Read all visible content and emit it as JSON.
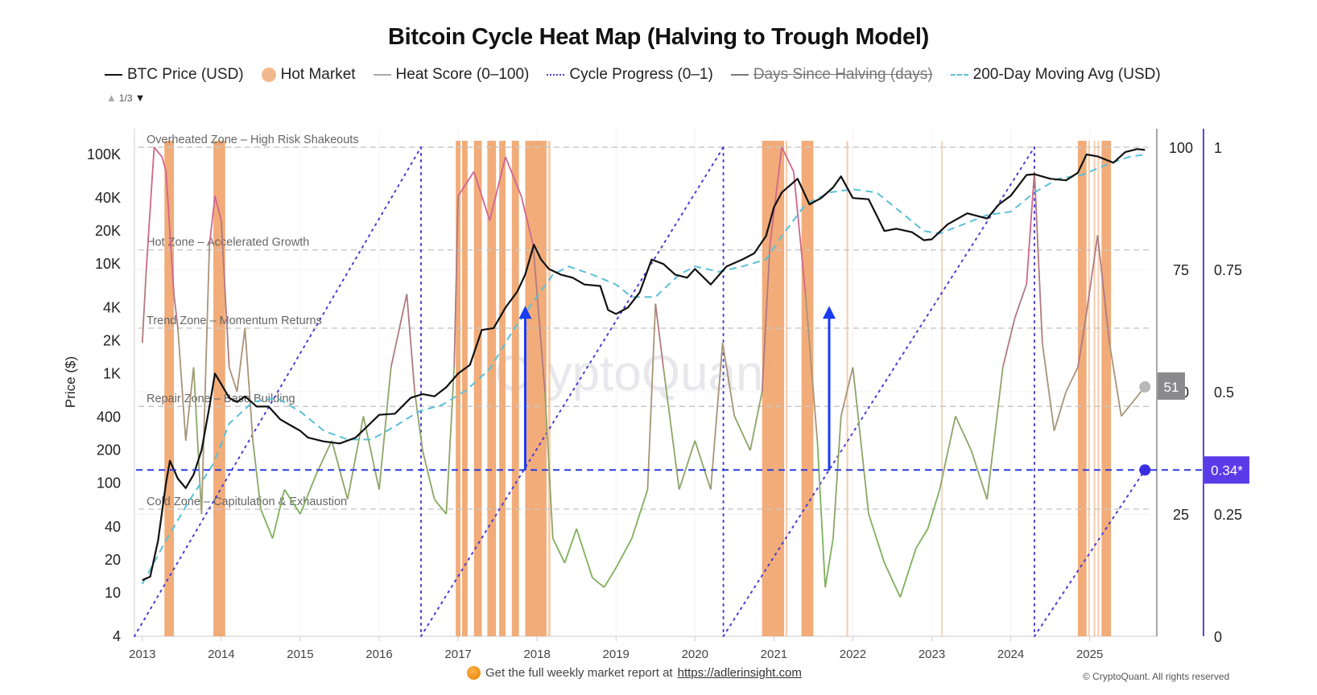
{
  "title": "Bitcoin Cycle Heat Map (Halving to Trough Model)",
  "legend": [
    {
      "label": "BTC Price (USD)",
      "style": "solid",
      "color": "#111111",
      "visible": true
    },
    {
      "label": "Hot Market",
      "style": "dot",
      "color": "#f2b98f",
      "visible": true
    },
    {
      "label": "Heat Score (0–100)",
      "style": "solid",
      "color": "#aaaaaa",
      "visible": true
    },
    {
      "label": "Cycle Progress (0–1)",
      "style": "dotted",
      "color": "#4b3bd6",
      "visible": true
    },
    {
      "label": "Days Since Halving (days)",
      "style": "solid",
      "color": "#777777",
      "visible": false
    },
    {
      "label": "200-Day Moving Avg (USD)",
      "style": "dashed",
      "color": "#5bc0d8",
      "visible": true
    }
  ],
  "legend_pager": {
    "text": "1/3"
  },
  "footer": {
    "text": "Get the full weekly market report at",
    "link": "https://adlerinsight.com",
    "copyright": "© CryptoQuant. All rights reserved"
  },
  "watermark": "CryptoQuant",
  "chart_data": {
    "type": "line",
    "title": "Bitcoin Cycle Heat Map (Halving to Trough Model)",
    "xlabel": "",
    "ylabel": "Price ($)",
    "x_ticks": [
      "2013",
      "2014",
      "2015",
      "2016",
      "2017",
      "2018",
      "2019",
      "2020",
      "2021",
      "2022",
      "2023",
      "2024",
      "2025"
    ],
    "xlim": [
      2012.9,
      2025.85
    ],
    "price_axis": {
      "scale": "log",
      "ylim": [
        4,
        130000
      ],
      "ticks": [
        {
          "value": 4,
          "label": "4"
        },
        {
          "value": 10,
          "label": "10"
        },
        {
          "value": 20,
          "label": "20"
        },
        {
          "value": 40,
          "label": "40"
        },
        {
          "value": 100,
          "label": "100"
        },
        {
          "value": 200,
          "label": "200"
        },
        {
          "value": 400,
          "label": "400"
        },
        {
          "value": 1000,
          "label": "1K"
        },
        {
          "value": 2000,
          "label": "2K"
        },
        {
          "value": 4000,
          "label": "4K"
        },
        {
          "value": 10000,
          "label": "10K"
        },
        {
          "value": 20000,
          "label": "20K"
        },
        {
          "value": 40000,
          "label": "40K"
        },
        {
          "value": 100000,
          "label": "100K"
        }
      ]
    },
    "heat_axis": {
      "ylim": [
        0,
        100
      ],
      "ticks": [
        {
          "value": 25,
          "label": "25"
        },
        {
          "value": 50,
          "label": "50"
        },
        {
          "value": 75,
          "label": "75"
        },
        {
          "value": 100,
          "label": "100"
        }
      ],
      "current_value": 51,
      "current_label": "51"
    },
    "progress_axis": {
      "ylim": [
        0,
        1
      ],
      "ticks": [
        {
          "value": 0,
          "label": "0"
        },
        {
          "value": 0.25,
          "label": "0.25"
        },
        {
          "value": 0.5,
          "label": "0.5"
        },
        {
          "value": 0.75,
          "label": "0.75"
        },
        {
          "value": 1,
          "label": "1"
        }
      ],
      "current_value": 0.34,
      "current_label": "0.34*"
    },
    "zones": [
      {
        "label": "Overheated Zone – High Risk Shakeouts",
        "heat": 100
      },
      {
        "label": "Hot Zone – Accelerated Growth",
        "heat": 79
      },
      {
        "label": "Trend Zone – Momentum Returns",
        "heat": 63
      },
      {
        "label": "Repair Zone – Base Building",
        "heat": 47
      },
      {
        "label": "Cold Zone – Capitulation & Exhaustion",
        "heat": 26
      }
    ],
    "halvings": [
      2012.9,
      2016.53,
      2020.36,
      2024.3
    ],
    "trough_arrows": [
      2017.85,
      2021.7
    ],
    "series": [
      {
        "name": "BTC Price (USD)",
        "x": [
          2013.0,
          2013.1,
          2013.2,
          2013.3,
          2013.35,
          2013.45,
          2013.55,
          2013.65,
          2013.75,
          2013.85,
          2013.92,
          2014.0,
          2014.1,
          2014.2,
          2014.3,
          2014.45,
          2014.6,
          2014.75,
          2014.9,
          2015.0,
          2015.1,
          2015.3,
          2015.5,
          2015.7,
          2015.85,
          2016.0,
          2016.2,
          2016.4,
          2016.55,
          2016.7,
          2016.85,
          2017.0,
          2017.15,
          2017.3,
          2017.45,
          2017.6,
          2017.75,
          2017.85,
          2017.96,
          2018.05,
          2018.15,
          2018.3,
          2018.45,
          2018.6,
          2018.8,
          2018.9,
          2019.0,
          2019.15,
          2019.3,
          2019.45,
          2019.6,
          2019.75,
          2019.9,
          2020.0,
          2020.2,
          2020.4,
          2020.6,
          2020.75,
          2020.9,
          2021.0,
          2021.1,
          2021.3,
          2021.45,
          2021.6,
          2021.75,
          2021.85,
          2022.0,
          2022.2,
          2022.4,
          2022.55,
          2022.75,
          2022.9,
          2023.0,
          2023.2,
          2023.45,
          2023.7,
          2023.85,
          2024.0,
          2024.2,
          2024.3,
          2024.5,
          2024.7,
          2024.85,
          2024.96,
          2025.1,
          2025.3,
          2025.45,
          2025.6,
          2025.7
        ],
        "values": [
          13,
          14,
          30,
          100,
          160,
          110,
          90,
          120,
          200,
          500,
          1000,
          800,
          600,
          550,
          620,
          500,
          500,
          380,
          330,
          300,
          260,
          240,
          230,
          260,
          330,
          420,
          430,
          600,
          650,
          620,
          750,
          1000,
          1200,
          2500,
          2600,
          4000,
          5600,
          8000,
          15000,
          11000,
          9000,
          8000,
          7500,
          6500,
          6300,
          3800,
          3500,
          4000,
          5500,
          11000,
          10000,
          8000,
          7500,
          9000,
          6500,
          9500,
          11000,
          12500,
          18000,
          33000,
          45000,
          60000,
          35000,
          40000,
          50000,
          63000,
          40000,
          39000,
          20000,
          21000,
          19500,
          16500,
          16800,
          23000,
          29000,
          26000,
          35000,
          42000,
          65000,
          66000,
          60000,
          58000,
          68000,
          100000,
          96000,
          84000,
          105000,
          112000,
          110000
        ]
      },
      {
        "name": "200-Day Moving Avg (USD)",
        "x": [
          2013.0,
          2013.3,
          2013.6,
          2013.9,
          2014.1,
          2014.4,
          2014.7,
          2015.0,
          2015.3,
          2015.6,
          2015.9,
          2016.2,
          2016.5,
          2016.8,
          2017.1,
          2017.4,
          2017.7,
          2017.95,
          2018.2,
          2018.4,
          2018.7,
          2019.0,
          2019.2,
          2019.5,
          2019.8,
          2020.0,
          2020.3,
          2020.6,
          2020.9,
          2021.1,
          2021.4,
          2021.7,
          2022.0,
          2022.3,
          2022.6,
          2022.9,
          2023.1,
          2023.4,
          2023.7,
          2024.0,
          2024.3,
          2024.6,
          2024.9,
          2025.2,
          2025.5,
          2025.7
        ],
        "values": [
          12,
          30,
          70,
          150,
          350,
          550,
          600,
          450,
          300,
          250,
          250,
          330,
          450,
          520,
          700,
          1100,
          2500,
          4500,
          8000,
          9500,
          8000,
          6500,
          5000,
          5000,
          8000,
          9500,
          8500,
          9500,
          11000,
          18000,
          35000,
          45000,
          48000,
          45000,
          30000,
          20000,
          19000,
          23000,
          28000,
          30000,
          45000,
          60000,
          65000,
          80000,
          95000,
          100000
        ]
      },
      {
        "name": "Heat Score (0–100)",
        "x": [
          2013.0,
          2013.05,
          2013.15,
          2013.25,
          2013.3,
          2013.4,
          2013.45,
          2013.55,
          2013.65,
          2013.75,
          2013.85,
          2013.92,
          2014.0,
          2014.1,
          2014.2,
          2014.3,
          2014.4,
          2014.5,
          2014.65,
          2014.8,
          2015.0,
          2015.2,
          2015.4,
          2015.6,
          2015.8,
          2016.0,
          2016.15,
          2016.35,
          2016.45,
          2016.55,
          2016.7,
          2016.85,
          2016.95,
          2017.0,
          2017.2,
          2017.4,
          2017.6,
          2017.8,
          2017.95,
          2018.1,
          2018.2,
          2018.35,
          2018.5,
          2018.7,
          2018.85,
          2019.0,
          2019.2,
          2019.4,
          2019.5,
          2019.6,
          2019.8,
          2020.0,
          2020.2,
          2020.35,
          2020.5,
          2020.7,
          2020.85,
          2020.95,
          2021.1,
          2021.25,
          2021.4,
          2021.55,
          2021.65,
          2021.75,
          2021.85,
          2022.0,
          2022.2,
          2022.4,
          2022.6,
          2022.8,
          2022.95,
          2023.1,
          2023.3,
          2023.5,
          2023.7,
          2023.9,
          2024.05,
          2024.2,
          2024.3,
          2024.4,
          2024.55,
          2024.7,
          2024.85,
          2024.95,
          2025.1,
          2025.25,
          2025.4,
          2025.55,
          2025.7
        ],
        "values": [
          60,
          75,
          100,
          98,
          95,
          70,
          63,
          40,
          55,
          25,
          80,
          90,
          85,
          55,
          50,
          63,
          40,
          26,
          20,
          30,
          25,
          33,
          40,
          28,
          45,
          30,
          55,
          70,
          50,
          38,
          28,
          25,
          55,
          90,
          95,
          85,
          98,
          90,
          80,
          50,
          20,
          15,
          22,
          12,
          10,
          14,
          20,
          30,
          68,
          55,
          30,
          40,
          30,
          60,
          45,
          38,
          50,
          80,
          100,
          95,
          70,
          40,
          10,
          20,
          45,
          55,
          25,
          15,
          8,
          18,
          22,
          30,
          45,
          38,
          28,
          55,
          65,
          72,
          95,
          60,
          42,
          50,
          55,
          65,
          82,
          60,
          45,
          48,
          51
        ]
      }
    ],
    "hot_market_periods": [
      [
        2013.28,
        2013.4
      ],
      [
        2013.9,
        2014.05
      ],
      [
        2016.97,
        2017.03
      ],
      [
        2017.05,
        2017.12
      ],
      [
        2017.2,
        2017.3
      ],
      [
        2017.37,
        2017.48
      ],
      [
        2017.52,
        2017.6
      ],
      [
        2017.68,
        2017.77
      ],
      [
        2017.85,
        2018.12
      ],
      [
        2018.14,
        2018.17
      ],
      [
        2020.85,
        2021.13
      ],
      [
        2021.15,
        2021.17
      ],
      [
        2021.35,
        2021.5
      ],
      [
        2021.92,
        2021.94
      ],
      [
        2023.12,
        2023.13
      ],
      [
        2024.85,
        2024.96
      ],
      [
        2024.98,
        2025.0
      ],
      [
        2025.05,
        2025.07
      ],
      [
        2025.1,
        2025.12
      ],
      [
        2025.15,
        2025.27
      ]
    ]
  }
}
